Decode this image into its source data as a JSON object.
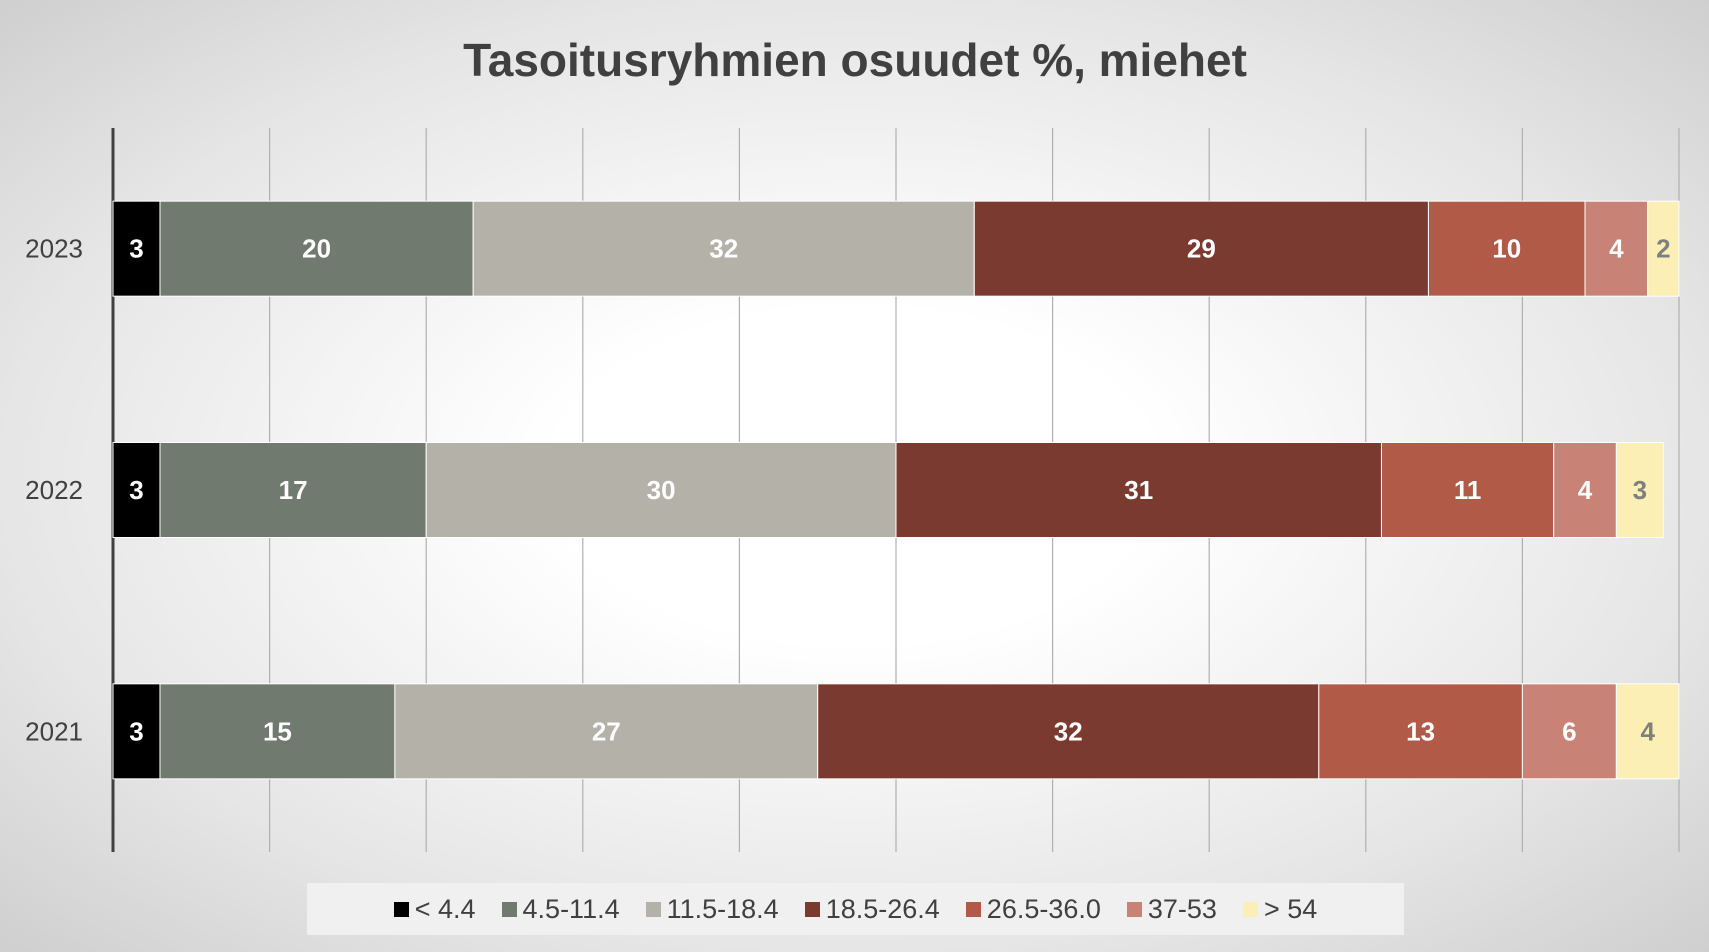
{
  "chart_data": {
    "type": "stacked_barh",
    "title": "Tasoitusryhmien osuudet %, miehet",
    "categories": [
      "2023",
      "2022",
      "2021"
    ],
    "series": [
      {
        "name": "< 4.4",
        "color": "#000000",
        "values": [
          3,
          3,
          3
        ]
      },
      {
        "name": "4.5-11.4",
        "color": "#717a6e",
        "values": [
          20,
          17,
          15
        ]
      },
      {
        "name": "11.5-18.4",
        "color": "#b3b1a8",
        "values": [
          32,
          30,
          27
        ]
      },
      {
        "name": "18.5-26.4",
        "color": "#7b3a2f",
        "values": [
          29,
          31,
          32
        ]
      },
      {
        "name": "26.5-36.0",
        "color": "#b05a47",
        "values": [
          10,
          11,
          13
        ]
      },
      {
        "name": "37-53",
        "color": "#c98276",
        "values": [
          4,
          4,
          6
        ]
      },
      {
        "name": "> 54",
        "color": "#fbefb5",
        "values": [
          2,
          3,
          4
        ]
      }
    ],
    "xlim": [
      0,
      100
    ],
    "xticks": [
      0,
      10,
      20,
      30,
      40,
      50,
      60,
      70,
      80,
      90,
      100
    ],
    "grid": true,
    "legend": "bottom"
  }
}
